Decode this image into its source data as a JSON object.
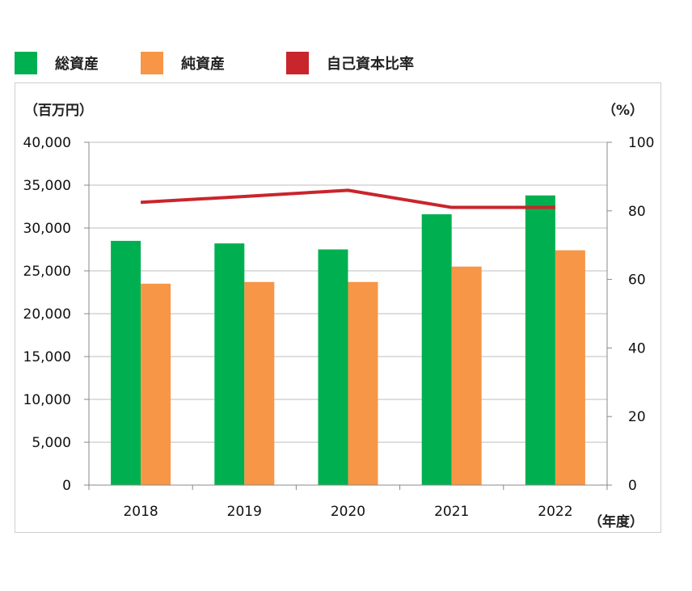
{
  "legend": [
    {
      "label": "総資産",
      "color": "#00b050"
    },
    {
      "label": "純資産",
      "color": "#f79646"
    },
    {
      "label": "自己資本比率",
      "color": "#c9252c"
    }
  ],
  "chart_data": {
    "type": "bar",
    "categories": [
      "2018",
      "2019",
      "2020",
      "2021",
      "2022"
    ],
    "series": [
      {
        "name": "総資産",
        "kind": "bar",
        "axis": "left",
        "color": "#00b050",
        "values": [
          28500,
          28200,
          27500,
          31600,
          33800
        ]
      },
      {
        "name": "純資産",
        "kind": "bar",
        "axis": "left",
        "color": "#f79646",
        "values": [
          23500,
          23700,
          23700,
          25500,
          27400
        ]
      },
      {
        "name": "自己資本比率",
        "kind": "line",
        "axis": "right",
        "color": "#c9252c",
        "values": [
          82.5,
          84.2,
          86.0,
          81.0,
          81.0
        ]
      }
    ],
    "y_left": {
      "unit": "（百万円）",
      "lim": [
        0,
        40000
      ],
      "ticks": [
        "0",
        "5,000",
        "10,000",
        "15,000",
        "20,000",
        "25,000",
        "30,000",
        "35,000",
        "40,000"
      ]
    },
    "y_right": {
      "unit": "（%）",
      "lim": [
        0,
        100
      ],
      "ticks": [
        "0",
        "20",
        "40",
        "60",
        "80",
        "100"
      ]
    },
    "x_unit": "（年度）",
    "grid": true,
    "legend_position": "top"
  }
}
